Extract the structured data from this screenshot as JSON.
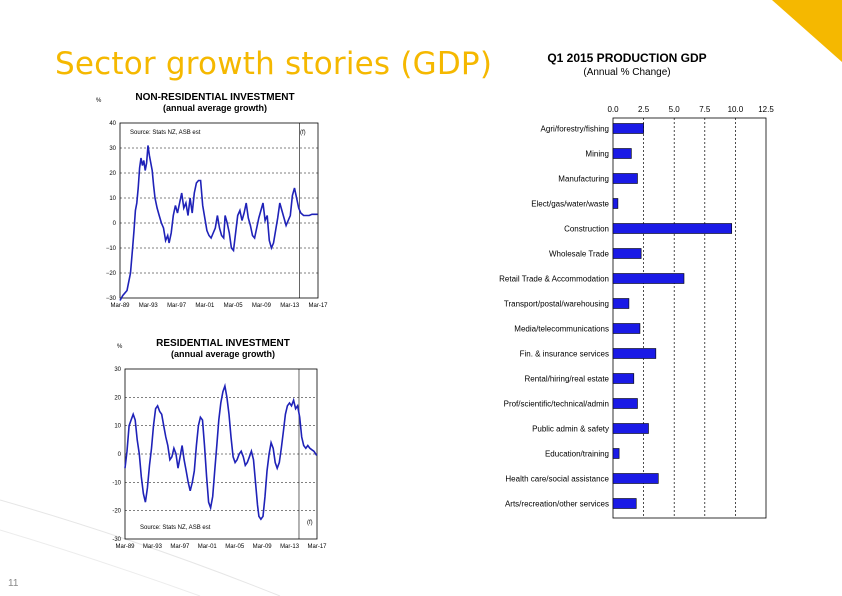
{
  "slide": {
    "title": "Sector growth stories (GDP)",
    "page_number": "11",
    "accent_color": "#f5b800"
  },
  "chart_data": [
    {
      "type": "line",
      "title": "NON-RESIDENTIAL  INVESTMENT",
      "subtitle": "(annual average growth)",
      "ylabel": "%",
      "source": "Source: Stats NZ, ASB est",
      "marker": "(f)",
      "ylim": [
        -30,
        40
      ],
      "yticks": [
        "40",
        "30",
        "20",
        "10",
        "0",
        "−10",
        "−20",
        "−30"
      ],
      "xticks": [
        "Mar-89",
        "Mar-93",
        "Mar-97",
        "Mar-01",
        "Mar-05",
        "Mar-09",
        "Mar-13",
        "Mar-17"
      ],
      "xlim": [
        1989,
        2017.25
      ],
      "forecast_start": 2014.6,
      "line_color": "#1f22b8",
      "points": [
        [
          1989.0,
          -31
        ],
        [
          1989.4,
          -29
        ],
        [
          1990.0,
          -27
        ],
        [
          1990.5,
          -20
        ],
        [
          1990.8,
          -10
        ],
        [
          1991.0,
          -3
        ],
        [
          1991.2,
          5
        ],
        [
          1991.4,
          8
        ],
        [
          1991.6,
          14
        ],
        [
          1991.8,
          22
        ],
        [
          1992.0,
          26
        ],
        [
          1992.2,
          23
        ],
        [
          1992.4,
          25
        ],
        [
          1992.6,
          21
        ],
        [
          1992.8,
          24
        ],
        [
          1993.0,
          31
        ],
        [
          1993.2,
          27
        ],
        [
          1993.4,
          24
        ],
        [
          1993.6,
          21
        ],
        [
          1993.8,
          15
        ],
        [
          1994.0,
          10
        ],
        [
          1994.3,
          6
        ],
        [
          1994.6,
          3
        ],
        [
          1994.9,
          0
        ],
        [
          1995.2,
          -2
        ],
        [
          1995.5,
          -7
        ],
        [
          1995.8,
          -5
        ],
        [
          1996.0,
          -8
        ],
        [
          1996.3,
          -4
        ],
        [
          1996.6,
          3
        ],
        [
          1996.9,
          7
        ],
        [
          1997.2,
          4
        ],
        [
          1997.5,
          8
        ],
        [
          1997.8,
          12
        ],
        [
          1998.1,
          6
        ],
        [
          1998.4,
          8
        ],
        [
          1998.7,
          3
        ],
        [
          1999.0,
          10
        ],
        [
          1999.3,
          4
        ],
        [
          1999.6,
          12
        ],
        [
          1999.9,
          16
        ],
        [
          2000.2,
          17
        ],
        [
          2000.5,
          17
        ],
        [
          2000.8,
          7
        ],
        [
          2001.1,
          2
        ],
        [
          2001.4,
          -3
        ],
        [
          2001.7,
          -5
        ],
        [
          2002.0,
          -6
        ],
        [
          2002.3,
          -4
        ],
        [
          2002.6,
          -2
        ],
        [
          2002.9,
          3
        ],
        [
          2003.2,
          -2
        ],
        [
          2003.5,
          -5
        ],
        [
          2003.8,
          -6
        ],
        [
          2004.0,
          3
        ],
        [
          2004.3,
          0
        ],
        [
          2004.6,
          -4
        ],
        [
          2004.9,
          -10
        ],
        [
          2005.2,
          -11
        ],
        [
          2005.5,
          -4
        ],
        [
          2005.8,
          3
        ],
        [
          2006.1,
          5
        ],
        [
          2006.4,
          1
        ],
        [
          2006.7,
          4
        ],
        [
          2007.0,
          8
        ],
        [
          2007.3,
          2
        ],
        [
          2007.6,
          -1
        ],
        [
          2007.9,
          -5
        ],
        [
          2008.2,
          -6
        ],
        [
          2008.5,
          -2
        ],
        [
          2008.8,
          2
        ],
        [
          2009.1,
          5
        ],
        [
          2009.4,
          8
        ],
        [
          2009.7,
          1
        ],
        [
          2010.0,
          3
        ],
        [
          2010.3,
          -7
        ],
        [
          2010.6,
          -10
        ],
        [
          2010.9,
          -8
        ],
        [
          2011.2,
          -3
        ],
        [
          2011.5,
          2
        ],
        [
          2011.8,
          8
        ],
        [
          2012.1,
          5
        ],
        [
          2012.4,
          2
        ],
        [
          2012.7,
          -1
        ],
        [
          2013.0,
          1
        ],
        [
          2013.3,
          3
        ],
        [
          2013.6,
          11
        ],
        [
          2013.9,
          14
        ],
        [
          2014.2,
          10
        ],
        [
          2014.5,
          6
        ],
        [
          2014.8,
          4
        ],
        [
          2015.2,
          3
        ],
        [
          2015.6,
          3
        ],
        [
          2016.0,
          3
        ],
        [
          2016.4,
          3.5
        ],
        [
          2016.8,
          3.5
        ],
        [
          2017.2,
          3.5
        ]
      ]
    },
    {
      "type": "line",
      "title": "RESIDENTIAL  INVESTMENT",
      "subtitle": "(annual average growth)",
      "ylabel": "%",
      "source": "Source: Stats NZ, ASB est",
      "marker": "(f)",
      "ylim": [
        -30,
        30
      ],
      "yticks": [
        "30",
        "20",
        "10",
        "0",
        "-10",
        "-20",
        "-30"
      ],
      "xticks": [
        "Mar-89",
        "Mar-93",
        "Mar-97",
        "Mar-01",
        "Mar-05",
        "Mar-09",
        "Mar-13",
        "Mar-17"
      ],
      "xlim": [
        1989,
        2017.25
      ],
      "forecast_start": 2014.6,
      "line_color": "#1f22b8",
      "points": [
        [
          1989.0,
          -5
        ],
        [
          1989.3,
          1
        ],
        [
          1989.6,
          10
        ],
        [
          1989.9,
          12
        ],
        [
          1990.2,
          14
        ],
        [
          1990.5,
          12
        ],
        [
          1990.8,
          5
        ],
        [
          1991.1,
          0
        ],
        [
          1991.4,
          -8
        ],
        [
          1991.7,
          -14
        ],
        [
          1992.0,
          -17
        ],
        [
          1992.3,
          -12
        ],
        [
          1992.6,
          -4
        ],
        [
          1992.9,
          2
        ],
        [
          1993.2,
          10
        ],
        [
          1993.5,
          16
        ],
        [
          1993.8,
          17
        ],
        [
          1994.1,
          15
        ],
        [
          1994.4,
          14
        ],
        [
          1994.7,
          10
        ],
        [
          1995.0,
          6
        ],
        [
          1995.3,
          3
        ],
        [
          1995.6,
          -2
        ],
        [
          1995.9,
          -1
        ],
        [
          1996.2,
          2
        ],
        [
          1996.5,
          0
        ],
        [
          1996.8,
          -5
        ],
        [
          1997.1,
          -1
        ],
        [
          1997.4,
          3
        ],
        [
          1997.7,
          -2
        ],
        [
          1998.0,
          -6
        ],
        [
          1998.3,
          -10
        ],
        [
          1998.6,
          -13
        ],
        [
          1998.9,
          -10
        ],
        [
          1999.2,
          -6
        ],
        [
          1999.5,
          3
        ],
        [
          1999.8,
          10
        ],
        [
          2000.1,
          13
        ],
        [
          2000.4,
          12
        ],
        [
          2000.7,
          3
        ],
        [
          2001.0,
          -8
        ],
        [
          2001.3,
          -17
        ],
        [
          2001.6,
          -19
        ],
        [
          2001.9,
          -15
        ],
        [
          2002.2,
          -6
        ],
        [
          2002.5,
          3
        ],
        [
          2002.8,
          12
        ],
        [
          2003.1,
          18
        ],
        [
          2003.4,
          22
        ],
        [
          2003.7,
          24
        ],
        [
          2004.0,
          20
        ],
        [
          2004.3,
          14
        ],
        [
          2004.6,
          6
        ],
        [
          2004.9,
          -1
        ],
        [
          2005.2,
          -3
        ],
        [
          2005.5,
          -2
        ],
        [
          2005.8,
          0
        ],
        [
          2006.1,
          1
        ],
        [
          2006.4,
          -1
        ],
        [
          2006.7,
          -4
        ],
        [
          2007.0,
          -3
        ],
        [
          2007.3,
          -1
        ],
        [
          2007.6,
          1
        ],
        [
          2007.9,
          -2
        ],
        [
          2008.2,
          -10
        ],
        [
          2008.5,
          -18
        ],
        [
          2008.7,
          -22
        ],
        [
          2009.0,
          -23
        ],
        [
          2009.3,
          -22
        ],
        [
          2009.6,
          -15
        ],
        [
          2009.9,
          -6
        ],
        [
          2010.2,
          0
        ],
        [
          2010.5,
          4
        ],
        [
          2010.8,
          2
        ],
        [
          2011.1,
          -3
        ],
        [
          2011.4,
          -5
        ],
        [
          2011.7,
          -3
        ],
        [
          2012.0,
          2
        ],
        [
          2012.3,
          8
        ],
        [
          2012.6,
          14
        ],
        [
          2012.9,
          17
        ],
        [
          2013.2,
          18
        ],
        [
          2013.5,
          17
        ],
        [
          2013.8,
          19
        ],
        [
          2014.1,
          16
        ],
        [
          2014.4,
          17
        ],
        [
          2014.7,
          13
        ],
        [
          2015.0,
          6
        ],
        [
          2015.3,
          3
        ],
        [
          2015.6,
          2
        ],
        [
          2015.9,
          3
        ],
        [
          2016.2,
          2
        ],
        [
          2016.5,
          1.5
        ],
        [
          2016.8,
          1
        ],
        [
          2017.2,
          -0.5
        ]
      ]
    },
    {
      "type": "bar",
      "orientation": "horizontal",
      "title": "Q1 2015 PRODUCTION  GDP",
      "subtitle": "(Annual % Change)",
      "xlim": [
        0,
        12.5
      ],
      "xticks": [
        "0.0",
        "2.5",
        "5.0",
        "7.5",
        "10.0",
        "12.5"
      ],
      "bar_color": "#1a1ae6",
      "categories": [
        "Agri/forestry/fishing",
        "Mining",
        "Manufacturing",
        "Elect/gas/water/waste",
        "Construction",
        "Wholesale Trade",
        "Retail Trade & Accommodation",
        "Transport/postal/warehousing",
        "Media/telecommunications",
        "Fin. & insurance services",
        "Rental/hiring/real estate",
        "Prof/scientific/technical/admin",
        "Public admin & safety",
        "Education/training",
        "Health care/social assistance",
        "Arts/recreation/other services"
      ],
      "values": [
        2.5,
        1.5,
        2.0,
        0.4,
        9.7,
        2.3,
        5.8,
        1.3,
        2.2,
        3.5,
        1.7,
        2.0,
        2.9,
        0.5,
        3.7,
        1.9
      ]
    }
  ]
}
